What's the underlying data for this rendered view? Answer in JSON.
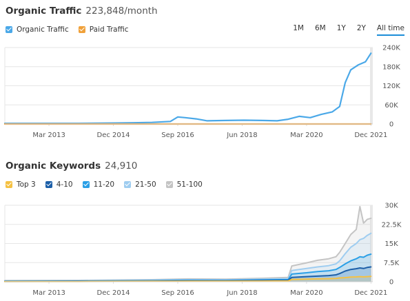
{
  "traffic": {
    "title": "Organic Traffic",
    "metric": "223,848/month",
    "legend": [
      {
        "label": "Organic Traffic",
        "color": "#4aa8e8"
      },
      {
        "label": "Paid Traffic",
        "color": "#f0a13a"
      }
    ],
    "ranges": [
      "1M",
      "6M",
      "1Y",
      "2Y",
      "All time"
    ],
    "active_range": "All time"
  },
  "keywords": {
    "title": "Organic Keywords",
    "metric": "24,910",
    "legend": [
      {
        "label": "Top 3",
        "color": "#f5c142"
      },
      {
        "label": "4-10",
        "color": "#1c5fa8"
      },
      {
        "label": "11-20",
        "color": "#2a9fe6"
      },
      {
        "label": "21-50",
        "color": "#9fcdf0"
      },
      {
        "label": "51-100",
        "color": "#c4c4c4"
      }
    ]
  },
  "chart_data": [
    {
      "type": "line",
      "title": "Organic Traffic",
      "x_tick_labels": [
        "Mar 2013",
        "Dec 2014",
        "Sep 2016",
        "Jun 2018",
        "Mar 2020",
        "Dec 2021"
      ],
      "y_tick_labels": [
        "240K",
        "180K",
        "120K",
        "60K",
        "0"
      ],
      "ylim": [
        0,
        240000
      ],
      "x": [
        2012.0,
        2013.0,
        2014.0,
        2015.0,
        2015.5,
        2016.0,
        2016.5,
        2016.7,
        2016.9,
        2017.2,
        2017.5,
        2018.0,
        2018.5,
        2019.0,
        2019.4,
        2019.7,
        2020.0,
        2020.3,
        2020.6,
        2020.9,
        2021.1,
        2021.25,
        2021.4,
        2021.6,
        2021.8,
        2021.95
      ],
      "series": [
        {
          "name": "Organic Traffic",
          "color": "#4aa8e8",
          "values": [
            2000,
            2000,
            2000,
            3000,
            4000,
            5000,
            8000,
            22000,
            20000,
            16000,
            10000,
            11000,
            12000,
            11000,
            10000,
            15000,
            24000,
            20000,
            30000,
            38000,
            55000,
            130000,
            170000,
            185000,
            195000,
            222000
          ]
        },
        {
          "name": "Paid Traffic",
          "color": "#f0a13a",
          "values": [
            0,
            0,
            0,
            0,
            0,
            0,
            0,
            0,
            0,
            0,
            0,
            0,
            0,
            0,
            0,
            0,
            0,
            0,
            0,
            0,
            0,
            0,
            0,
            0,
            0,
            0
          ]
        }
      ]
    },
    {
      "type": "area",
      "title": "Organic Keywords",
      "x_tick_labels": [
        "Mar 2013",
        "Dec 2014",
        "Sep 2016",
        "Jun 2018",
        "Mar 2020",
        "Dec 2021"
      ],
      "y_tick_labels": [
        "30K",
        "22.5K",
        "15K",
        "7.5K",
        "0"
      ],
      "ylim": [
        0,
        30000
      ],
      "x": [
        2012.0,
        2014.0,
        2016.0,
        2017.0,
        2018.0,
        2019.0,
        2019.7,
        2019.8,
        2020.2,
        2020.5,
        2020.8,
        2021.0,
        2021.1,
        2021.25,
        2021.4,
        2021.55,
        2021.65,
        2021.75,
        2021.85,
        2021.95
      ],
      "series": [
        {
          "name": "Top 3",
          "color": "#f5c142",
          "values": [
            60,
            80,
            150,
            200,
            180,
            250,
            300,
            900,
            1000,
            1100,
            1200,
            1300,
            1500,
            1600,
            1800,
            1900,
            2000,
            1900,
            2000,
            2100
          ]
        },
        {
          "name": "4-10",
          "color": "#1c5fa8",
          "values": [
            120,
            150,
            250,
            350,
            320,
            450,
            550,
            1700,
            2000,
            2200,
            2400,
            2700,
            3200,
            4200,
            4800,
            5100,
            5400,
            5200,
            5600,
            5800
          ]
        },
        {
          "name": "11-20",
          "color": "#2a9fe6",
          "values": [
            220,
            260,
            400,
            550,
            520,
            700,
            850,
            3000,
            3500,
            4000,
            4300,
            4800,
            5600,
            7000,
            8200,
            9000,
            9800,
            9600,
            10400,
            10800
          ]
        },
        {
          "name": "21-50",
          "color": "#9fcdf0",
          "values": [
            350,
            400,
            620,
            800,
            750,
            1000,
            1200,
            4400,
            5200,
            5800,
            6300,
            7000,
            8200,
            11000,
            13500,
            15000,
            16500,
            17000,
            18200,
            19000
          ]
        },
        {
          "name": "51-100",
          "color": "#c4c4c4",
          "values": [
            500,
            550,
            800,
            1100,
            1000,
            1350,
            1700,
            6200,
            7400,
            8400,
            9000,
            9800,
            11500,
            15000,
            18500,
            20500,
            29500,
            23000,
            24500,
            24900
          ]
        }
      ]
    }
  ]
}
